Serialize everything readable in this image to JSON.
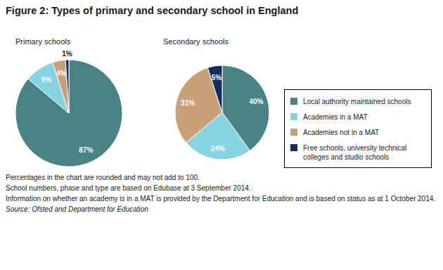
{
  "chart_data": {
    "type": "pie",
    "title": "Figure 2: Types of primary and secondary school in England",
    "categories": [
      "Local authority maintained schools",
      "Academies in a MAT",
      "Academies not in a MAT",
      "Free schools, university technical colleges and studio schools"
    ],
    "colors": [
      "#4a8386",
      "#86d3e2",
      "#c9a077",
      "#0e2f5e"
    ],
    "series": [
      {
        "name": "Primary schools",
        "values": [
          87,
          9,
          4,
          1
        ]
      },
      {
        "name": "Secondary schools",
        "values": [
          40,
          24,
          31,
          5
        ]
      }
    ],
    "data_labels": true,
    "value_labels": [
      [
        "87%",
        "9%",
        "4%",
        "1%"
      ],
      [
        "40%",
        "24%",
        "31%",
        "5%"
      ]
    ],
    "annotations": [
      "Percentages in the chart are rounded and may not add to 100.",
      "School numbers, phase and type are based on Edubase at 3 September 2014.",
      "Information on whether an academy is in a MAT is provided by the Department for Education and is based on status as at 1 October 2014.",
      "Source: Ofsted and Department for Education"
    ]
  }
}
